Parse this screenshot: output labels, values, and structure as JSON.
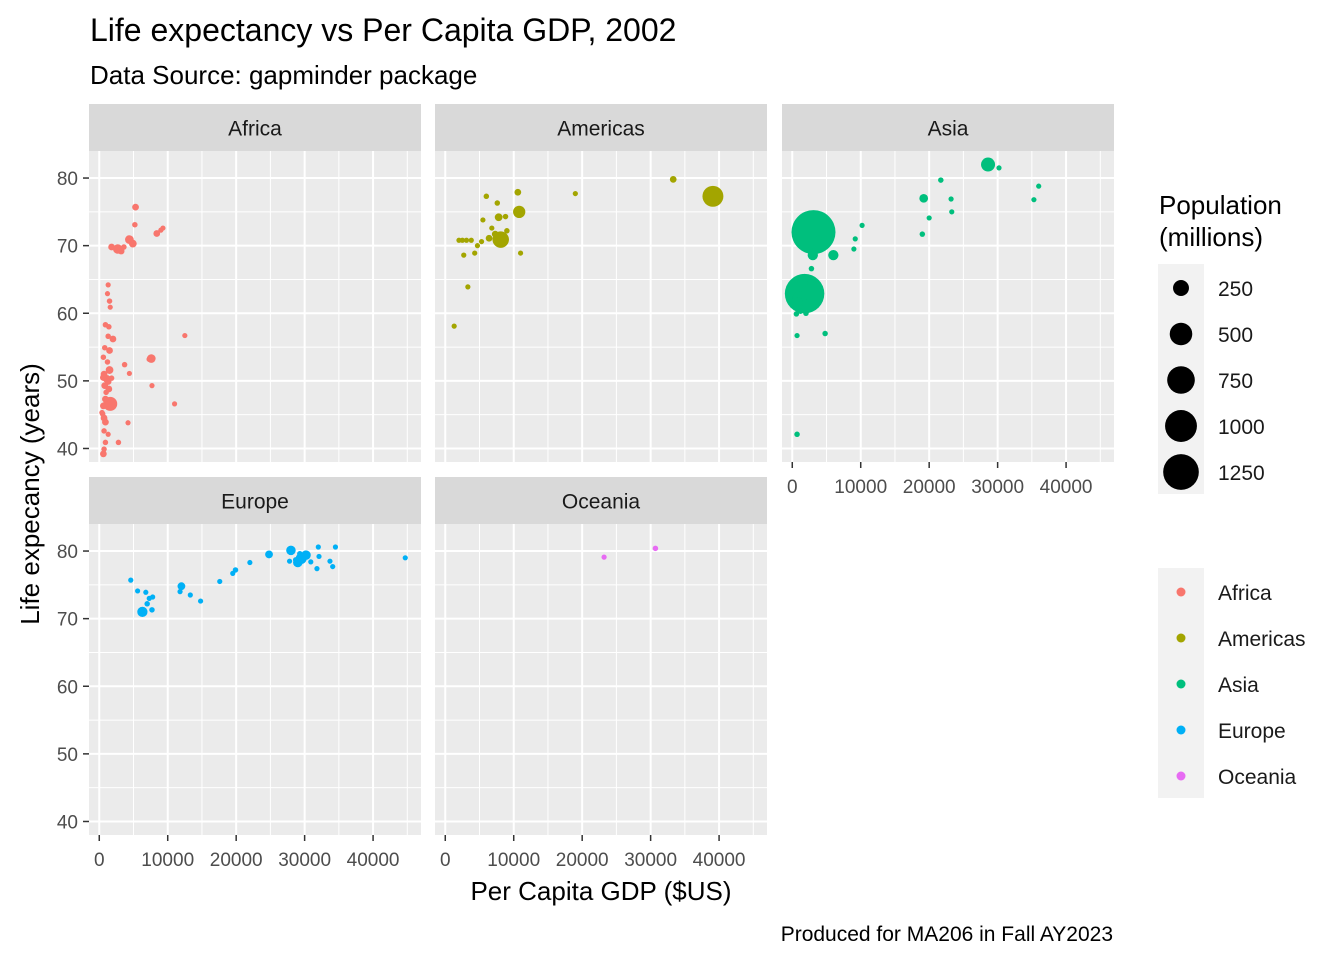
{
  "chart_data": {
    "type": "scatter",
    "title": "Life expectancy vs Per Capita GDP, 2002",
    "subtitle": "Data Source: gapminder package",
    "caption": "Produced for MA206 in Fall AY2023",
    "xlabel": "Per Capita GDP ($US)",
    "ylabel": "Life expecancy (years)",
    "xlim": [
      -1500,
      47000
    ],
    "ylim": [
      38,
      84
    ],
    "x_ticks": [
      0,
      10000,
      20000,
      30000,
      40000
    ],
    "x_tick_labels": [
      "0",
      "10000",
      "20000",
      "30000",
      "40000"
    ],
    "y_ticks": [
      40,
      50,
      60,
      70,
      80
    ],
    "y_tick_labels": [
      "40",
      "50",
      "60",
      "70",
      "80"
    ],
    "grid": true,
    "facets": [
      "Africa",
      "Americas",
      "Asia",
      "Europe",
      "Oceania"
    ],
    "legends": {
      "size": {
        "title_lines": [
          "Population",
          "(millions)"
        ],
        "values": [
          250,
          500,
          750,
          1000,
          1250
        ],
        "labels": [
          "250",
          "500",
          "750",
          "1000",
          "1250"
        ]
      },
      "color": {
        "entries": [
          {
            "label": "Africa",
            "color": "#F8766D"
          },
          {
            "label": "Americas",
            "color": "#A3A500"
          },
          {
            "label": "Asia",
            "color": "#00BF7D"
          },
          {
            "label": "Europe",
            "color": "#00B0F6"
          },
          {
            "label": "Oceania",
            "color": "#E76BF3"
          }
        ]
      }
    },
    "series": [
      {
        "name": "Africa",
        "color": "#F8766D",
        "points": [
          [
            5300,
            75.7,
            30
          ],
          [
            5200,
            73.1,
            20
          ],
          [
            4400,
            70.9,
            50
          ],
          [
            4900,
            70.3,
            40
          ],
          [
            3600,
            69.8,
            20
          ],
          [
            2700,
            69.5,
            60
          ],
          [
            3200,
            69.2,
            30
          ],
          [
            1800,
            69.8,
            30
          ],
          [
            9300,
            72.6,
            10
          ],
          [
            9000,
            72.3,
            10
          ],
          [
            8400,
            71.8,
            30
          ],
          [
            1300,
            64.2,
            3
          ],
          [
            1200,
            62.9,
            3
          ],
          [
            1500,
            61.8,
            20
          ],
          [
            1600,
            60.9,
            10
          ],
          [
            1400,
            58.0,
            20
          ],
          [
            900,
            58.3,
            20
          ],
          [
            2000,
            56.2,
            30
          ],
          [
            1300,
            56.6,
            20
          ],
          [
            800,
            54.9,
            20
          ],
          [
            1500,
            54.5,
            30
          ],
          [
            600,
            53.5,
            20
          ],
          [
            1200,
            52.8,
            20
          ],
          [
            1500,
            51.6,
            40
          ],
          [
            700,
            51.0,
            30
          ],
          [
            600,
            50.5,
            30
          ],
          [
            1100,
            50.3,
            40
          ],
          [
            1300,
            49.9,
            30
          ],
          [
            1800,
            50.4,
            20
          ],
          [
            800,
            49.3,
            30
          ],
          [
            1400,
            48.8,
            30
          ],
          [
            1000,
            48.3,
            20
          ],
          [
            1600,
            46.6,
            130
          ],
          [
            900,
            47.3,
            30
          ],
          [
            600,
            46.3,
            30
          ],
          [
            500,
            45.1,
            20
          ],
          [
            700,
            44.5,
            30
          ],
          [
            900,
            43.9,
            30
          ],
          [
            400,
            45.3,
            20
          ],
          [
            700,
            42.6,
            20
          ],
          [
            1300,
            42.1,
            10
          ],
          [
            900,
            40.9,
            20
          ],
          [
            700,
            39.9,
            20
          ],
          [
            600,
            39.2,
            30
          ],
          [
            2800,
            40.9,
            20
          ],
          [
            7600,
            53.3,
            50
          ],
          [
            7300,
            53.2,
            20
          ],
          [
            3700,
            52.4,
            20
          ],
          [
            4400,
            51.1,
            10
          ],
          [
            7700,
            49.3,
            10
          ],
          [
            12500,
            56.7,
            3
          ],
          [
            11000,
            46.6,
            10
          ],
          [
            4200,
            43.8,
            10
          ]
        ]
      },
      {
        "name": "Americas",
        "color": "#A3A500",
        "points": [
          [
            33300,
            79.8,
            30
          ],
          [
            39100,
            77.3,
            290
          ],
          [
            19000,
            77.7,
            10
          ],
          [
            10600,
            77.9,
            30
          ],
          [
            6000,
            77.3,
            20
          ],
          [
            7600,
            76.3,
            20
          ],
          [
            10800,
            75.0,
            100
          ],
          [
            8800,
            74.3,
            20
          ],
          [
            7800,
            74.2,
            40
          ],
          [
            5500,
            73.8,
            10
          ],
          [
            6800,
            72.6,
            10
          ],
          [
            9000,
            72.2,
            20
          ],
          [
            7300,
            71.7,
            30
          ],
          [
            6400,
            71.1,
            30
          ],
          [
            8100,
            70.9,
            180
          ],
          [
            3800,
            70.8,
            10
          ],
          [
            2000,
            70.8,
            3
          ],
          [
            2500,
            70.8,
            10
          ],
          [
            3100,
            70.8,
            10
          ],
          [
            5300,
            70.6,
            10
          ],
          [
            4700,
            70.0,
            10
          ],
          [
            4300,
            68.9,
            10
          ],
          [
            2700,
            68.6,
            10
          ],
          [
            11000,
            68.9,
            1
          ],
          [
            3300,
            63.9,
            10
          ],
          [
            1300,
            58.1,
            10
          ]
        ]
      },
      {
        "name": "Asia",
        "color": "#00BF7D",
        "points": [
          [
            28600,
            82.0,
            130
          ],
          [
            30200,
            81.5,
            7
          ],
          [
            36000,
            78.8,
            3
          ],
          [
            35300,
            76.8,
            3
          ],
          [
            23200,
            76.9,
            10
          ],
          [
            21700,
            79.7,
            20
          ],
          [
            19200,
            77.0,
            50
          ],
          [
            23300,
            75.0,
            3
          ],
          [
            20000,
            74.1,
            10
          ],
          [
            19000,
            71.7,
            20
          ],
          [
            10200,
            73.0,
            10
          ],
          [
            9200,
            71.0,
            10
          ],
          [
            9000,
            69.5,
            10
          ],
          [
            3100,
            72.0,
            1280
          ],
          [
            3900,
            71.1,
            20
          ],
          [
            2600,
            69.5,
            10
          ],
          [
            3000,
            68.6,
            70
          ],
          [
            6000,
            68.6,
            70
          ],
          [
            2800,
            66.6,
            20
          ],
          [
            1700,
            65.0,
            80
          ],
          [
            1500,
            64.5,
            70
          ],
          [
            1800,
            62.9,
            1030
          ],
          [
            1100,
            62.2,
            140
          ],
          [
            900,
            61.7,
            50
          ],
          [
            1200,
            60.3,
            20
          ],
          [
            2000,
            60.0,
            20
          ],
          [
            600,
            59.9,
            20
          ],
          [
            700,
            56.7,
            10
          ],
          [
            4800,
            57.0,
            20
          ],
          [
            700,
            42.1,
            20
          ]
        ]
      },
      {
        "name": "Europe",
        "color": "#00B0F6",
        "points": [
          [
            44700,
            79.0,
            3
          ],
          [
            34500,
            80.6,
            10
          ],
          [
            32000,
            80.6,
            3
          ],
          [
            28000,
            80.1,
            60
          ],
          [
            29300,
            79.6,
            20
          ],
          [
            30200,
            79.4,
            60
          ],
          [
            24800,
            79.5,
            40
          ],
          [
            29500,
            78.9,
            80
          ],
          [
            32100,
            79.2,
            10
          ],
          [
            28700,
            78.7,
            20
          ],
          [
            33700,
            78.5,
            10
          ],
          [
            34100,
            77.7,
            10
          ],
          [
            30900,
            78.4,
            10
          ],
          [
            27800,
            78.5,
            10
          ],
          [
            29000,
            78.3,
            60
          ],
          [
            31800,
            77.4,
            10
          ],
          [
            22000,
            78.3,
            10
          ],
          [
            19900,
            77.2,
            20
          ],
          [
            19500,
            76.7,
            10
          ],
          [
            17600,
            75.5,
            10
          ],
          [
            12000,
            74.8,
            40
          ],
          [
            11800,
            74.0,
            10
          ],
          [
            13300,
            73.5,
            10
          ],
          [
            14800,
            72.6,
            10
          ],
          [
            7800,
            73.2,
            10
          ],
          [
            7300,
            73.0,
            10
          ],
          [
            7000,
            72.2,
            20
          ],
          [
            6800,
            73.9,
            10
          ],
          [
            5600,
            74.1,
            10
          ],
          [
            7700,
            71.3,
            20
          ],
          [
            6300,
            71.0,
            70
          ],
          [
            4600,
            75.7,
            3
          ]
        ]
      },
      {
        "name": "Oceania",
        "color": "#E76BF3",
        "points": [
          [
            30700,
            80.4,
            20
          ],
          [
            23200,
            79.1,
            4
          ]
        ]
      }
    ]
  }
}
